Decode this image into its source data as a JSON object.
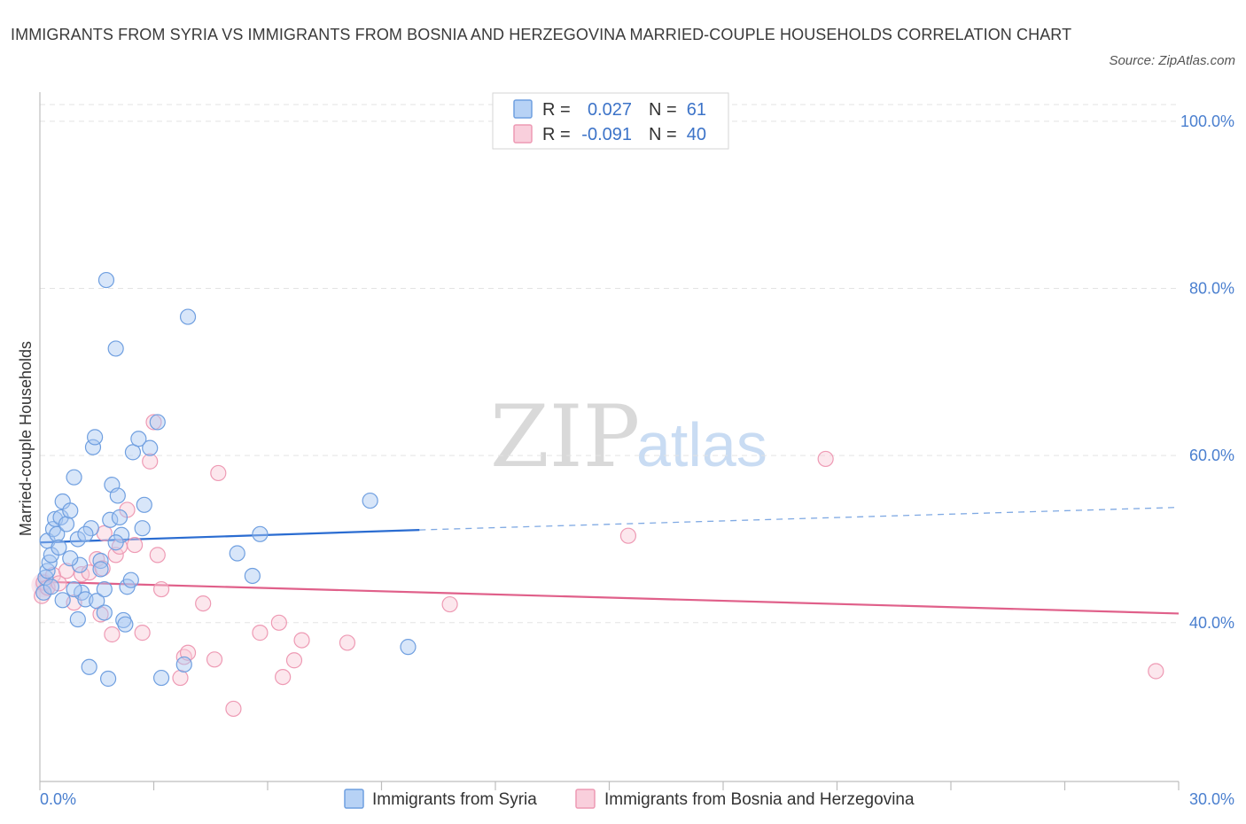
{
  "title": "IMMIGRANTS FROM SYRIA VS IMMIGRANTS FROM BOSNIA AND HERZEGOVINA MARRIED-COUPLE HOUSEHOLDS CORRELATION CHART",
  "source": "Source: ZipAtlas.com",
  "watermark": {
    "zip": "ZIP",
    "atlas": "atlas"
  },
  "legend": {
    "rows": [
      {
        "r_label": "R =",
        "r_value": "0.027",
        "n_label": "N =",
        "n_value": "61"
      },
      {
        "r_label": "R =",
        "r_value": "-0.091",
        "n_label": "N =",
        "n_value": "40"
      }
    ]
  },
  "chart_data": {
    "type": "scatter",
    "title": "IMMIGRANTS FROM SYRIA VS IMMIGRANTS FROM BOSNIA AND HERZEGOVINA MARRIED-COUPLE HOUSEHOLDS CORRELATION CHART",
    "xlabel": "",
    "ylabel": "Married-couple Households",
    "xlim": [
      0,
      30
    ],
    "ylim": [
      21,
      102
    ],
    "x_tick_labels": [
      "0.0%",
      "30.0%"
    ],
    "y_ticks": [
      40,
      60,
      80,
      100
    ],
    "y_tick_labels": [
      "40.0%",
      "60.0%",
      "80.0%",
      "100.0%"
    ],
    "grid": true,
    "series": [
      {
        "name": "Immigrants from Syria",
        "color": "#6f9fe0",
        "fill": "#a9c8f2",
        "trend": {
          "x0": 0,
          "y0": 49.6,
          "x1": 10,
          "y1": 51.1,
          "dashed_to_x": 30,
          "dashed_to_y": 53.8,
          "color": "#2a6cd1"
        },
        "points": [
          [
            0.1,
            43.6
          ],
          [
            0.15,
            45.4
          ],
          [
            0.2,
            46.2
          ],
          [
            0.25,
            47.2
          ],
          [
            0.2,
            49.8
          ],
          [
            0.3,
            48.1
          ],
          [
            0.35,
            51.2
          ],
          [
            0.4,
            52.4
          ],
          [
            0.45,
            50.6
          ],
          [
            0.5,
            49.0
          ],
          [
            0.55,
            52.6
          ],
          [
            0.6,
            54.5
          ],
          [
            0.7,
            51.8
          ],
          [
            0.8,
            53.4
          ],
          [
            0.9,
            57.4
          ],
          [
            1.0,
            50.0
          ],
          [
            1.05,
            46.9
          ],
          [
            1.1,
            43.6
          ],
          [
            1.2,
            42.8
          ],
          [
            1.3,
            34.7
          ],
          [
            1.35,
            51.3
          ],
          [
            1.4,
            61.0
          ],
          [
            1.45,
            62.2
          ],
          [
            1.5,
            42.6
          ],
          [
            1.6,
            47.4
          ],
          [
            1.7,
            41.2
          ],
          [
            1.75,
            81.0
          ],
          [
            1.8,
            33.3
          ],
          [
            1.85,
            52.3
          ],
          [
            1.9,
            56.5
          ],
          [
            2.0,
            72.8
          ],
          [
            2.05,
            55.2
          ],
          [
            2.1,
            52.6
          ],
          [
            2.15,
            50.5
          ],
          [
            2.2,
            40.3
          ],
          [
            2.25,
            39.8
          ],
          [
            2.3,
            44.3
          ],
          [
            2.4,
            45.1
          ],
          [
            2.45,
            60.4
          ],
          [
            2.6,
            62.0
          ],
          [
            2.7,
            51.3
          ],
          [
            2.75,
            54.1
          ],
          [
            2.9,
            60.9
          ],
          [
            3.1,
            64.0
          ],
          [
            3.2,
            33.4
          ],
          [
            3.8,
            35.0
          ],
          [
            3.9,
            76.6
          ],
          [
            5.2,
            48.3
          ],
          [
            5.6,
            45.6
          ],
          [
            5.8,
            50.6
          ],
          [
            8.7,
            54.6
          ],
          [
            9.7,
            37.1
          ],
          [
            0.6,
            42.7
          ],
          [
            0.9,
            44.0
          ],
          [
            1.0,
            40.4
          ],
          [
            1.7,
            44.0
          ],
          [
            1.6,
            46.4
          ],
          [
            2.0,
            49.6
          ],
          [
            0.3,
            44.3
          ],
          [
            1.2,
            50.6
          ],
          [
            0.8,
            47.7
          ]
        ]
      },
      {
        "name": "Immigrants from Bosnia and Herzegovina",
        "color": "#ee9ab4",
        "fill": "#f8c9d7",
        "trend": {
          "x0": 0,
          "y0": 44.9,
          "x1": 30,
          "y1": 41.1,
          "color": "#e0608a"
        },
        "points": [
          [
            0.05,
            43.2
          ],
          [
            0.1,
            44.8
          ],
          [
            0.2,
            44.2
          ],
          [
            0.35,
            45.7
          ],
          [
            0.5,
            44.7
          ],
          [
            0.7,
            46.2
          ],
          [
            0.9,
            42.4
          ],
          [
            1.1,
            45.8
          ],
          [
            1.3,
            46.0
          ],
          [
            1.5,
            47.6
          ],
          [
            1.6,
            41.0
          ],
          [
            1.65,
            46.5
          ],
          [
            1.7,
            50.7
          ],
          [
            1.9,
            38.6
          ],
          [
            2.0,
            48.1
          ],
          [
            2.1,
            49.1
          ],
          [
            2.3,
            53.5
          ],
          [
            2.5,
            49.3
          ],
          [
            2.9,
            59.3
          ],
          [
            3.0,
            64.0
          ],
          [
            3.2,
            44.0
          ],
          [
            2.7,
            38.8
          ],
          [
            3.1,
            48.1
          ],
          [
            3.7,
            33.4
          ],
          [
            3.8,
            35.9
          ],
          [
            3.9,
            36.4
          ],
          [
            4.3,
            42.3
          ],
          [
            4.6,
            35.6
          ],
          [
            4.7,
            57.9
          ],
          [
            5.1,
            29.7
          ],
          [
            5.8,
            38.8
          ],
          [
            6.3,
            40.0
          ],
          [
            6.4,
            33.5
          ],
          [
            6.7,
            35.5
          ],
          [
            6.9,
            37.9
          ],
          [
            8.1,
            37.6
          ],
          [
            10.8,
            42.2
          ],
          [
            15.5,
            50.4
          ],
          [
            20.7,
            59.6
          ],
          [
            29.4,
            34.2
          ]
        ]
      }
    ]
  },
  "bottom_legend": [
    {
      "label": "Immigrants from Syria"
    },
    {
      "label": "Immigrants from Bosnia and Herzegovina"
    }
  ]
}
